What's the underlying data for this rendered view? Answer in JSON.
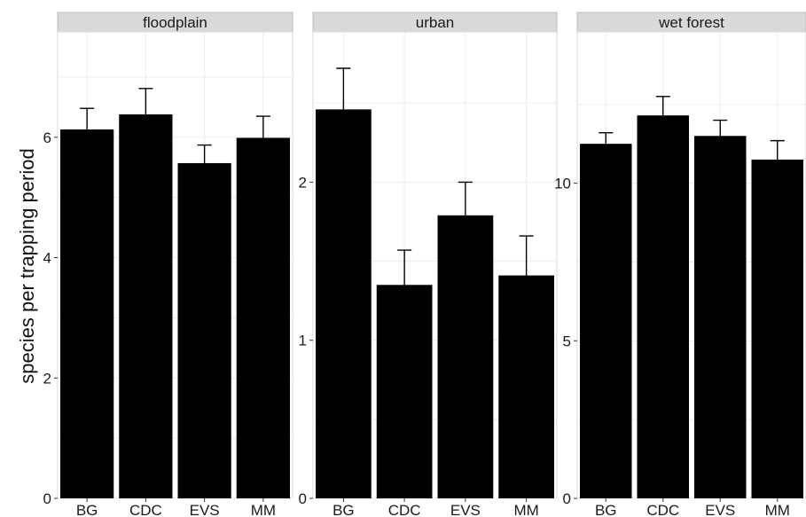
{
  "chart_data": {
    "type": "bar",
    "ylabel": "species per trapping period",
    "xlabel": "",
    "grid": true,
    "error_bars": true,
    "categories": [
      "BG",
      "CDC",
      "EVS",
      "MM"
    ],
    "colors": {
      "bar": "#000000",
      "strip": "#d9d9d9",
      "grid": "#ececec",
      "axis": "#333333"
    },
    "panels": [
      {
        "name": "floodplain",
        "ylim": [
          0,
          7.75
        ],
        "yticks": [
          0,
          2,
          4,
          6
        ],
        "values": [
          6.13,
          6.38,
          5.57,
          5.99
        ],
        "err_high": [
          6.48,
          6.81,
          5.87,
          6.35
        ]
      },
      {
        "name": "urban",
        "ylim": [
          0,
          2.95
        ],
        "yticks": [
          0,
          1,
          2
        ],
        "values": [
          2.46,
          1.35,
          1.79,
          1.41
        ],
        "err_high": [
          2.72,
          1.57,
          2.0,
          1.66
        ]
      },
      {
        "name": "wet forest",
        "ylim": [
          0,
          14.8
        ],
        "yticks": [
          0,
          5,
          10
        ],
        "values": [
          11.25,
          12.15,
          11.5,
          10.75
        ],
        "err_high": [
          11.6,
          12.75,
          12.0,
          11.35
        ]
      }
    ]
  }
}
